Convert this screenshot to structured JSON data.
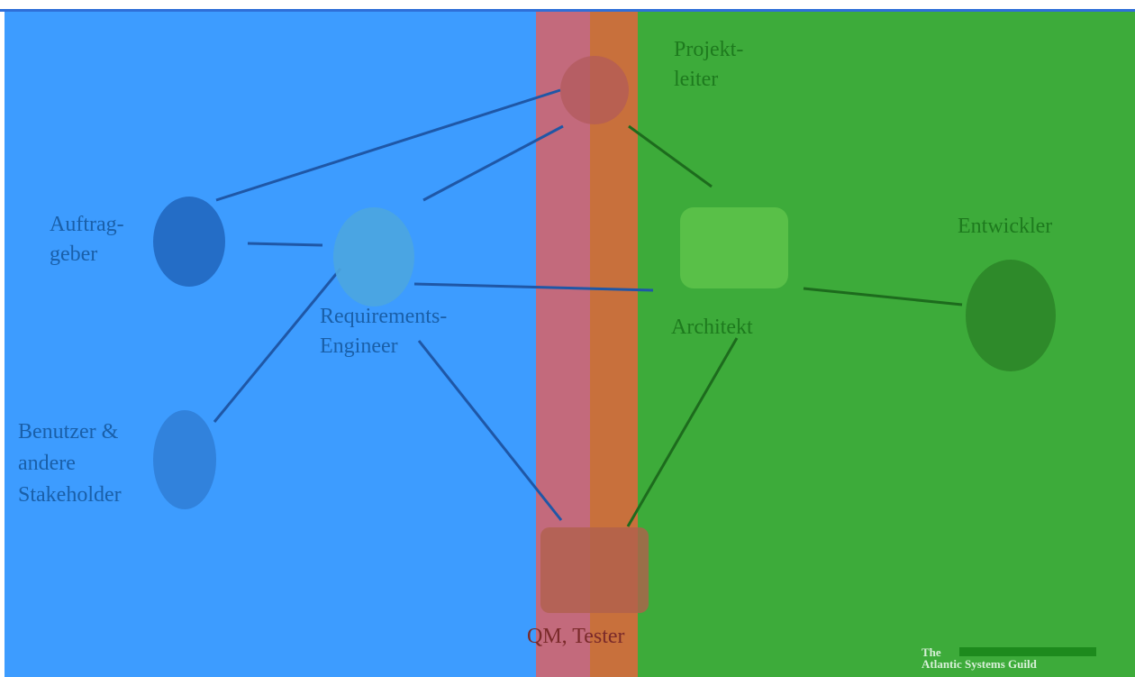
{
  "nodes": [
    {
      "id": "projektleiter",
      "lines": [
        "Projekt-",
        "leiter"
      ]
    },
    {
      "id": "auftraggeber",
      "lines": [
        "Auftrag-",
        "geber"
      ]
    },
    {
      "id": "requirements-engineer",
      "lines": [
        "Requirements-",
        "Engineer"
      ]
    },
    {
      "id": "benutzer",
      "lines": [
        "Benutzer &",
        "andere",
        "Stakeholder"
      ]
    },
    {
      "id": "architekt",
      "lines": [
        "Architekt"
      ]
    },
    {
      "id": "entwickler",
      "lines": [
        "Entwickler"
      ]
    },
    {
      "id": "qm-tester",
      "lines": [
        "QM, Tester"
      ]
    }
  ],
  "logo": {
    "lines": [
      "The",
      "Atlantic Systems Guild"
    ]
  }
}
